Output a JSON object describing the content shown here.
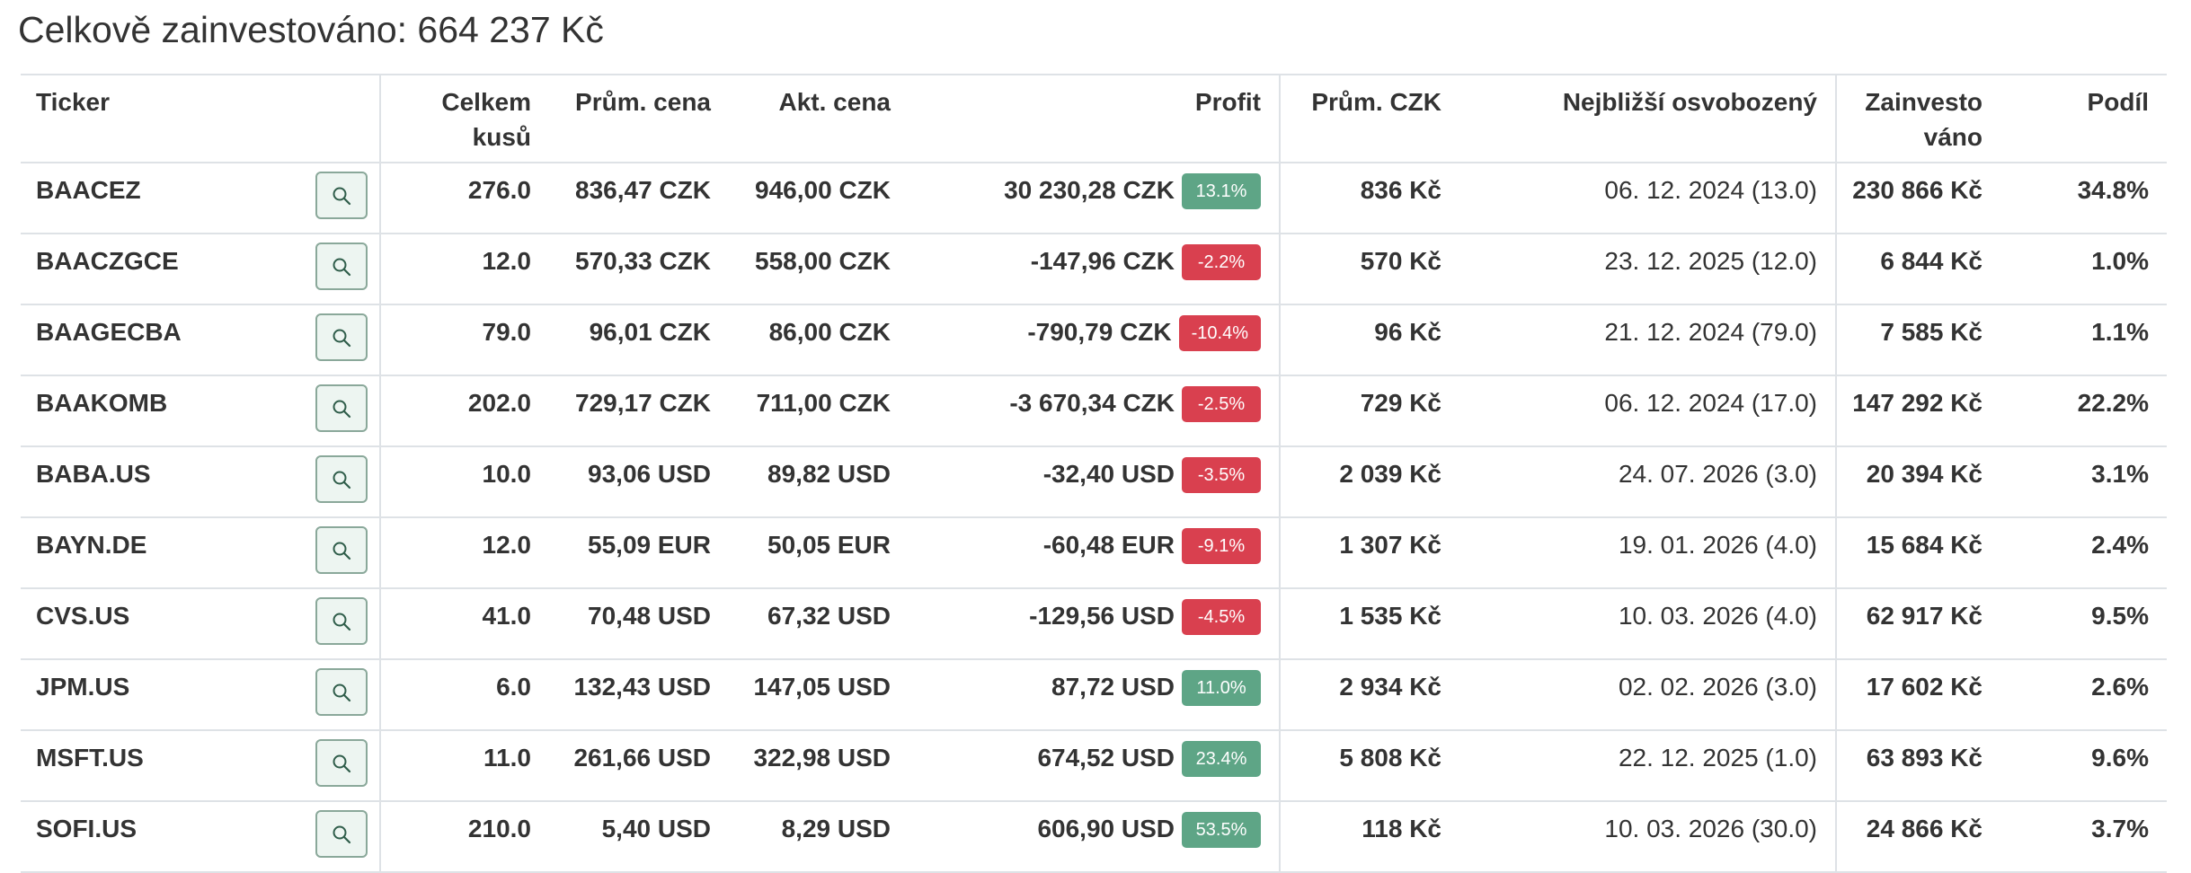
{
  "page": {
    "title": "Celkově zainvestováno: 664 237 Kč"
  },
  "table": {
    "headers": {
      "ticker": "Ticker",
      "total_units": "Celkem kusů",
      "avg_price": "Prům. cena",
      "current_price": "Akt. cena",
      "profit": "Profit",
      "avg_czk": "Prům. CZK",
      "nearest_free": "Nejbližší osvobozený",
      "invested": "Zainvestováno",
      "share": "Podíl"
    },
    "rows": [
      {
        "ticker": "BAACEZ",
        "units": "276.0",
        "avg_price": "836,47 CZK",
        "current_price": "946,00 CZK",
        "profit": "30 230,28 CZK",
        "pct": "13.1%",
        "positive": true,
        "avg_czk": "836 Kč",
        "nearest_free": "06. 12. 2024 (13.0)",
        "invested": "230 866 Kč",
        "share": "34.8%"
      },
      {
        "ticker": "BAACZGCE",
        "units": "12.0",
        "avg_price": "570,33 CZK",
        "current_price": "558,00 CZK",
        "profit": "-147,96 CZK",
        "pct": "-2.2%",
        "positive": false,
        "avg_czk": "570 Kč",
        "nearest_free": "23. 12. 2025 (12.0)",
        "invested": "6 844 Kč",
        "share": "1.0%"
      },
      {
        "ticker": "BAAGECBA",
        "units": "79.0",
        "avg_price": "96,01 CZK",
        "current_price": "86,00 CZK",
        "profit": "-790,79 CZK",
        "pct": "-10.4%",
        "positive": false,
        "avg_czk": "96 Kč",
        "nearest_free": "21. 12. 2024 (79.0)",
        "invested": "7 585 Kč",
        "share": "1.1%"
      },
      {
        "ticker": "BAAKOMB",
        "units": "202.0",
        "avg_price": "729,17 CZK",
        "current_price": "711,00 CZK",
        "profit": "-3 670,34 CZK",
        "pct": "-2.5%",
        "positive": false,
        "avg_czk": "729 Kč",
        "nearest_free": "06. 12. 2024 (17.0)",
        "invested": "147 292 Kč",
        "share": "22.2%"
      },
      {
        "ticker": "BABA.US",
        "units": "10.0",
        "avg_price": "93,06 USD",
        "current_price": "89,82 USD",
        "profit": "-32,40 USD",
        "pct": "-3.5%",
        "positive": false,
        "avg_czk": "2 039 Kč",
        "nearest_free": "24. 07. 2026 (3.0)",
        "invested": "20 394 Kč",
        "share": "3.1%"
      },
      {
        "ticker": "BAYN.DE",
        "units": "12.0",
        "avg_price": "55,09 EUR",
        "current_price": "50,05 EUR",
        "profit": "-60,48 EUR",
        "pct": "-9.1%",
        "positive": false,
        "avg_czk": "1 307 Kč",
        "nearest_free": "19. 01. 2026 (4.0)",
        "invested": "15 684 Kč",
        "share": "2.4%"
      },
      {
        "ticker": "CVS.US",
        "units": "41.0",
        "avg_price": "70,48 USD",
        "current_price": "67,32 USD",
        "profit": "-129,56 USD",
        "pct": "-4.5%",
        "positive": false,
        "avg_czk": "1 535 Kč",
        "nearest_free": "10. 03. 2026 (4.0)",
        "invested": "62 917 Kč",
        "share": "9.5%"
      },
      {
        "ticker": "JPM.US",
        "units": "6.0",
        "avg_price": "132,43 USD",
        "current_price": "147,05 USD",
        "profit": "87,72 USD",
        "pct": "11.0%",
        "positive": true,
        "avg_czk": "2 934 Kč",
        "nearest_free": "02. 02. 2026 (3.0)",
        "invested": "17 602 Kč",
        "share": "2.6%"
      },
      {
        "ticker": "MSFT.US",
        "units": "11.0",
        "avg_price": "261,66 USD",
        "current_price": "322,98 USD",
        "profit": "674,52 USD",
        "pct": "23.4%",
        "positive": true,
        "avg_czk": "5 808 Kč",
        "nearest_free": "22. 12. 2025 (1.0)",
        "invested": "63 893 Kč",
        "share": "9.6%"
      },
      {
        "ticker": "SOFI.US",
        "units": "210.0",
        "avg_price": "5,40 USD",
        "current_price": "8,29 USD",
        "profit": "606,90 USD",
        "pct": "53.5%",
        "positive": true,
        "avg_czk": "118 Kč",
        "nearest_free": "10. 03. 2026 (30.0)",
        "invested": "24 866 Kč",
        "share": "3.7%"
      }
    ]
  },
  "icons": {
    "detail_button": "search-icon"
  },
  "colors": {
    "positive_badge": "#5ea586",
    "negative_badge": "#d9404f",
    "button_border": "#8aa89a",
    "button_bg": "#edf5f1"
  }
}
